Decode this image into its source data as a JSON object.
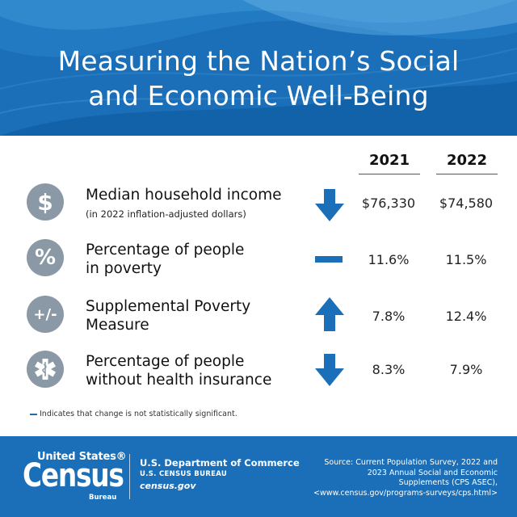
{
  "header": {
    "title_line1": "Measuring the Nation’s Social",
    "title_line2": "and Economic Well-Being"
  },
  "columns": {
    "year1": "2021",
    "year2": "2022"
  },
  "rows": [
    {
      "icon": "dollar-sign-icon",
      "icon_text": "$",
      "label_line1": "Median household income",
      "label_line2": "",
      "sublabel": "(in 2022 inflation-adjusted dollars)",
      "trend": "down",
      "value_2021": "$76,330",
      "value_2022": "$74,580"
    },
    {
      "icon": "percent-icon",
      "icon_text": "%",
      "label_line1": "Percentage of people",
      "label_line2": "in poverty",
      "sublabel": "",
      "trend": "no-significant-change",
      "value_2021": "11.6%",
      "value_2022": "11.5%"
    },
    {
      "icon": "plus-minus-icon",
      "icon_text": "+/-",
      "label_line1": "Supplemental Poverty",
      "label_line2": "Measure",
      "sublabel": "",
      "trend": "up",
      "value_2021": "7.8%",
      "value_2022": "12.4%"
    },
    {
      "icon": "medical-star-icon",
      "icon_text": "",
      "label_line1": "Percentage of people",
      "label_line2": "without health insurance",
      "sublabel": "",
      "trend": "down",
      "value_2021": "8.3%",
      "value_2022": "7.9%"
    }
  ],
  "footnote": "Indicates that change is not statistically significant.",
  "footer": {
    "logo_top": "United States®",
    "logo_main": "Census",
    "logo_bureau": "Bureau",
    "dept": "U.S. Department of Commerce",
    "bureau_caps": "U.S. CENSUS BUREAU",
    "site": "census.gov",
    "source_line1": "Source: Current Population Survey, 2022 and",
    "source_line2": "2023 Annual Social and Economic",
    "source_line3": "Supplements (CPS ASEC),",
    "source_line4": "<www.census.gov/programs-surveys/cps.html>"
  },
  "colors": {
    "brand_blue": "#1a6fb8",
    "icon_gray": "#8a99a5",
    "arrow_blue": "#1a6fb8"
  }
}
